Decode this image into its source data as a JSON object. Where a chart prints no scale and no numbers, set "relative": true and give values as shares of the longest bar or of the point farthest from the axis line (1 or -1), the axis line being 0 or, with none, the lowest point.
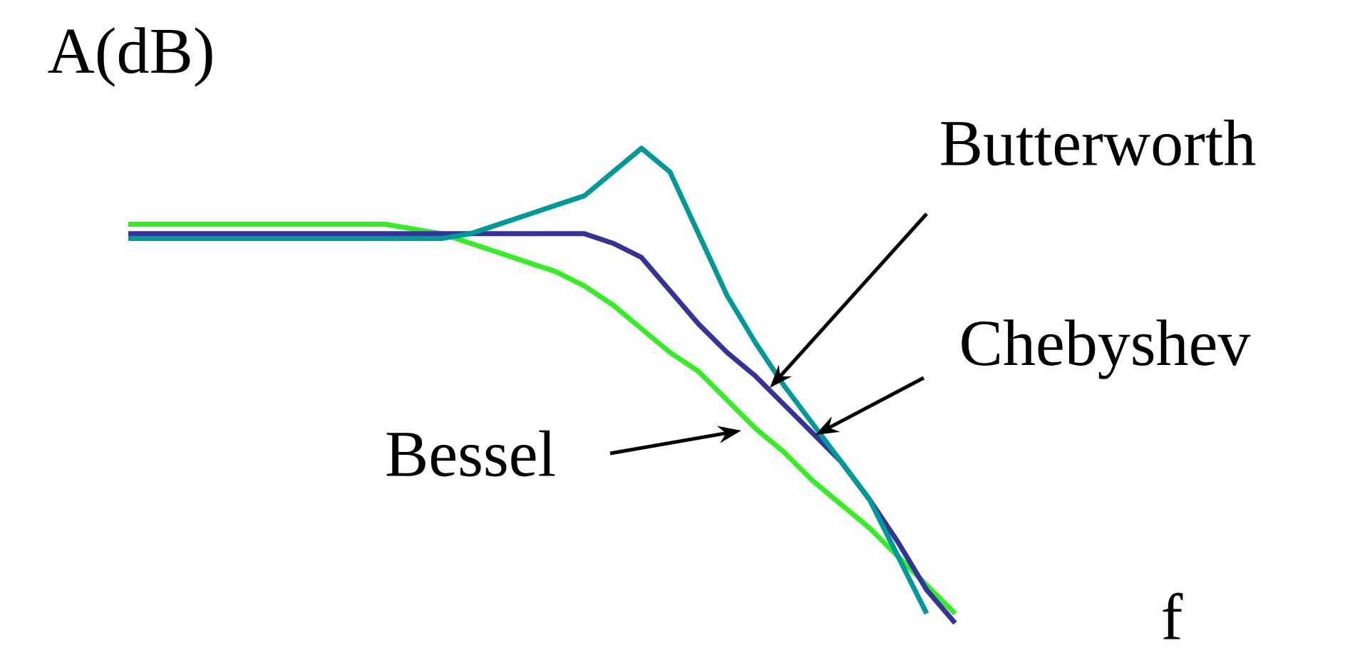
{
  "chart_data": {
    "type": "line",
    "relative": true,
    "xlabel": "f",
    "ylabel": "A(dB)",
    "categories": [
      null,
      null,
      null,
      null,
      null,
      null,
      null,
      null,
      null,
      null,
      null,
      null,
      null,
      null,
      null,
      null,
      null,
      null,
      null,
      null,
      null,
      null,
      null,
      null,
      null,
      null,
      null,
      null,
      null,
      null
    ],
    "series": [
      {
        "name": "Bessel",
        "color": "#33ee22",
        "values": [
          0.84,
          0.84,
          0.84,
          0.84,
          0.84,
          0.84,
          0.84,
          0.84,
          0.84,
          0.84,
          0.83,
          0.82,
          0.8,
          0.78,
          0.76,
          0.74,
          0.71,
          0.67,
          0.62,
          0.57,
          0.53,
          0.47,
          0.41,
          0.36,
          0.3,
          0.25,
          0.2,
          0.14,
          0.08,
          0.02
        ]
      },
      {
        "name": "Butterworth",
        "color": "#333399",
        "values": [
          0.82,
          0.82,
          0.82,
          0.82,
          0.82,
          0.82,
          0.82,
          0.82,
          0.82,
          0.82,
          0.82,
          0.82,
          0.82,
          0.82,
          0.82,
          0.82,
          0.82,
          0.8,
          0.77,
          0.7,
          0.63,
          0.57,
          0.52,
          0.46,
          0.4,
          0.34,
          0.26,
          0.17,
          0.07,
          0
        ]
      },
      {
        "name": "Chebyshev",
        "color": "#009999",
        "values": [
          0.81,
          0.81,
          0.81,
          0.81,
          0.81,
          0.81,
          0.81,
          0.81,
          0.81,
          0.81,
          0.81,
          0.81,
          0.82,
          0.84,
          0.86,
          0.88,
          0.9,
          0.95,
          1,
          0.95,
          0.82,
          0.69,
          0.59,
          0.5,
          0.42,
          0.34,
          0.26,
          0.14,
          0.02,
          null
        ]
      }
    ]
  }
}
